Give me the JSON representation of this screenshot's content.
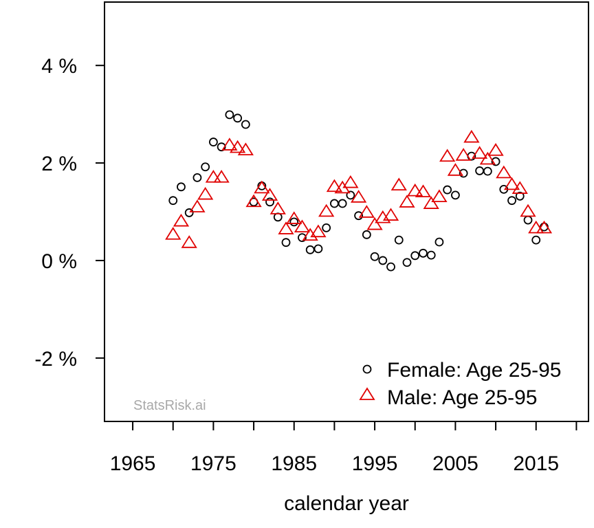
{
  "chart_data": {
    "type": "scatter",
    "xlabel": "calendar year",
    "ylabel": "",
    "xlim": [
      1961.5,
      2021.5
    ],
    "ylim": [
      -3.3,
      5.3
    ],
    "x_ticks": [
      1965,
      1970,
      1975,
      1980,
      1985,
      1990,
      1995,
      2000,
      2005,
      2010,
      2015,
      2020
    ],
    "x_tick_labels": [
      "1965",
      "1975",
      "1985",
      "1995",
      "2005",
      "2015"
    ],
    "x_tick_label_values": [
      1965,
      1975,
      1985,
      1995,
      2005,
      2015
    ],
    "y_ticks": [
      -2,
      0,
      2,
      4
    ],
    "y_tick_labels": [
      "-2 %",
      "0 %",
      "2 %",
      "4 %"
    ],
    "grid": false,
    "legend_position": "bottom-right",
    "watermark": "StatsRisk.ai",
    "series": [
      {
        "name": "Female: Age 25-95",
        "marker": "circle",
        "color": "#000000",
        "x": [
          1970,
          1971,
          1972,
          1973,
          1974,
          1975,
          1976,
          1977,
          1978,
          1979,
          1980,
          1981,
          1982,
          1983,
          1984,
          1985,
          1986,
          1987,
          1988,
          1989,
          1990,
          1991,
          1992,
          1993,
          1994,
          1995,
          1996,
          1997,
          1998,
          1999,
          2000,
          2001,
          2002,
          2003,
          2004,
          2005,
          2006,
          2007,
          2008,
          2009,
          2010,
          2011,
          2012,
          2013,
          2014,
          2015,
          2016
        ],
        "y": [
          1.23,
          1.51,
          0.98,
          1.7,
          1.92,
          2.43,
          2.33,
          2.99,
          2.92,
          2.79,
          1.2,
          1.53,
          1.2,
          0.89,
          0.37,
          0.79,
          0.47,
          0.22,
          0.24,
          0.67,
          1.17,
          1.17,
          1.34,
          0.92,
          0.53,
          0.08,
          0.0,
          -0.13,
          0.42,
          -0.04,
          0.1,
          0.15,
          0.11,
          0.38,
          1.45,
          1.34,
          1.79,
          2.14,
          1.84,
          1.83,
          2.03,
          1.46,
          1.23,
          1.32,
          0.83,
          0.42,
          0.69
        ]
      },
      {
        "name": "Male: Age 25-95",
        "marker": "triangle",
        "color": "#e00000",
        "x": [
          1970,
          1971,
          1972,
          1973,
          1974,
          1975,
          1976,
          1977,
          1978,
          1979,
          1980,
          1981,
          1982,
          1983,
          1984,
          1985,
          1986,
          1987,
          1988,
          1989,
          1990,
          1991,
          1992,
          1993,
          1994,
          1995,
          1996,
          1997,
          1998,
          1999,
          2000,
          2001,
          2002,
          2003,
          2004,
          2005,
          2006,
          2007,
          2008,
          2009,
          2010,
          2011,
          2012,
          2013,
          2014,
          2015,
          2016
        ],
        "y": [
          0.53,
          0.8,
          0.36,
          1.09,
          1.35,
          1.7,
          1.7,
          2.36,
          2.31,
          2.26,
          1.2,
          1.48,
          1.33,
          1.05,
          0.64,
          0.85,
          0.68,
          0.51,
          0.58,
          1.0,
          1.51,
          1.48,
          1.59,
          1.29,
          0.98,
          0.73,
          0.87,
          0.92,
          1.54,
          1.19,
          1.42,
          1.4,
          1.16,
          1.3,
          2.13,
          1.84,
          2.15,
          2.52,
          2.19,
          2.07,
          2.25,
          1.79,
          1.55,
          1.47,
          1.0,
          0.66,
          0.66
        ]
      }
    ]
  }
}
